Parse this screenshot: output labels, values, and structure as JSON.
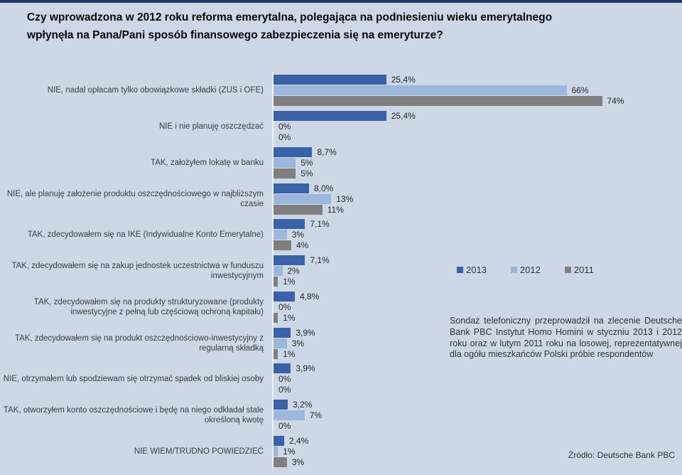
{
  "legend": [
    {
      "label": "2013",
      "color": "#3A62A8"
    },
    {
      "label": "2012",
      "color": "#9CB7DC"
    },
    {
      "label": "2011",
      "color": "#7F7F7F"
    }
  ],
  "annotation": "Sondaż telefoniczny przeprowadził na zlecenie Deutsche Bank PBC  Instytut Homo Homini w styczniu 2013 i 2012 roku oraz w lutym 2011 roku na losowej, reprezentatywnej dla ogółu mieszkańców Polski próbie respondentów",
  "source": "Źródło: Deutsche Bank PBC",
  "chart_data": {
    "type": "bar",
    "orientation": "horizontal",
    "title": "Czy wprowadzona w 2012 roku reforma emerytalna, polegająca na podniesieniu wieku emerytalnego wpłynęła na Pana/Pani sposób finansowego zabezpieczenia się na emeryturze?",
    "xlabel": "",
    "ylabel": "",
    "xlim": [
      0,
      80
    ],
    "grid": false,
    "legend_position": "middle-right",
    "value_labels": "end-of-bar",
    "categories": [
      "NIE, nadal opłacam tylko obowiązkowe składki (ZUS i OFE)",
      "NIE i nie planuję oszczędzać",
      "TAK, założyłem lokatę w banku",
      "NIE, ale planuję założenie produktu oszczędnościowego w najbliższym czasie",
      "TAK, zdecydowałem się na IKE (Indywidualne Konto Emerytalne)",
      "TAK, zdecydowałem się na zakup jednostek uczestnictwa w funduszu inwestycyjnym",
      "TAK, zdecydowałem się na produkty strukturyzowane (produkty inwestycyjne z pełną lub częściową ochroną kapitału)",
      "TAK, zdecydowałem się na produkt oszczędnościowo-inwestycyjny z regularną składką",
      "NIE, otrzymałem lub spodziewam się otrzymać spadek od bliskiej osoby",
      "TAK, otworzyłem konto oszczędnościowe i będę na niego odkładał stale określoną kwotę",
      "NIE WIEM/TRUDNO POWIEDZIEĆ"
    ],
    "series": [
      {
        "name": "2013",
        "color": "#3A62A8",
        "values": [
          25.4,
          25.4,
          8.7,
          8.0,
          7.1,
          7.1,
          4.8,
          3.9,
          3.9,
          3.2,
          2.4
        ],
        "labels": [
          "25,4%",
          "25,4%",
          "8,7%",
          "8,0%",
          "7,1%",
          "7,1%",
          "4,8%",
          "3,9%",
          "3,9%",
          "3,2%",
          "2,4%"
        ]
      },
      {
        "name": "2012",
        "color": "#9CB7DC",
        "values": [
          66,
          0,
          5,
          13,
          3,
          2,
          0,
          3,
          0,
          7,
          1
        ],
        "labels": [
          "66%",
          "0%",
          "5%",
          "13%",
          "3%",
          "2%",
          "0%",
          "3%",
          "0%",
          "7%",
          "1%"
        ]
      },
      {
        "name": "2011",
        "color": "#7F7F7F",
        "values": [
          74,
          0,
          5,
          11,
          4,
          1,
          1,
          1,
          0,
          0,
          3
        ],
        "labels": [
          "74%",
          "0%",
          "5%",
          "11%",
          "4%",
          "1%",
          "1%",
          "1%",
          "0%",
          "0%",
          "3%"
        ]
      }
    ]
  }
}
